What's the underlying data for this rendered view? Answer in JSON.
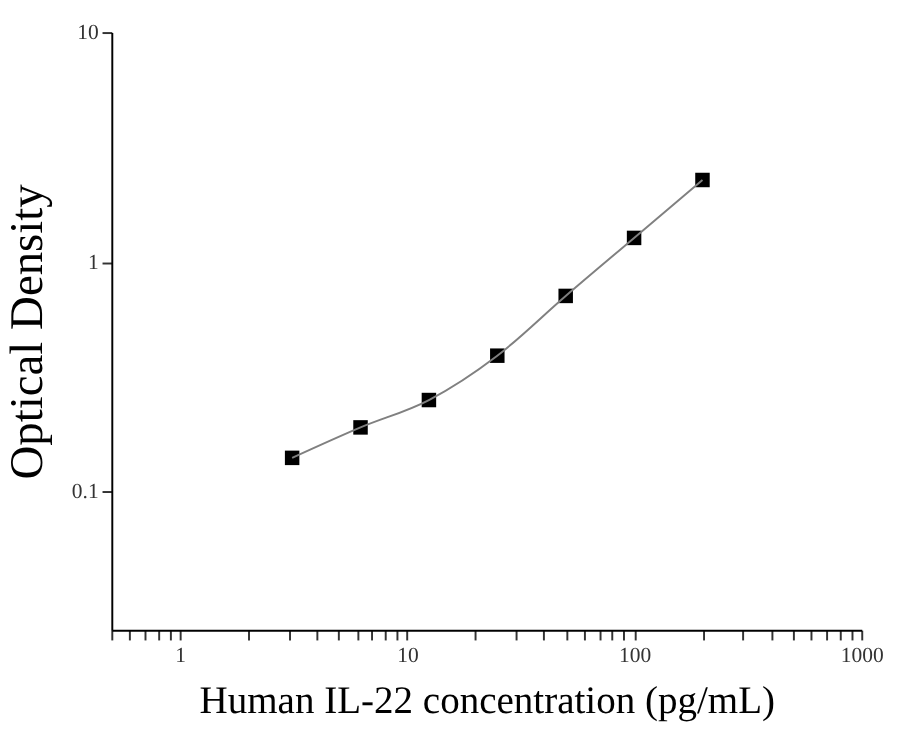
{
  "chart_data": {
    "type": "scatter",
    "xlabel": "Human IL-22 concentration (pg/mL)",
    "ylabel": "Optical Density",
    "log": "xy",
    "grid": false,
    "marker": "square",
    "x": [
      3.125,
      6.25,
      12.5,
      25,
      50,
      100,
      200
    ],
    "series": [
      {
        "color": "#000000",
        "values": [
          0.14,
          0.19,
          0.25,
          0.39,
          0.71,
          1.27,
          2.27
        ]
      },
      {
        "type": "line",
        "color": "#808080",
        "line_style": "solid",
        "marker": "none",
        "x": [
          3.125,
          6.25,
          12.5,
          25,
          50,
          100,
          200
        ],
        "values": [
          0.14,
          0.19,
          0.25,
          0.39,
          0.71,
          1.27,
          2.27
        ]
      }
    ],
    "xlim": [
      0.5,
      1000
    ],
    "ylim": [
      0.025,
      10
    ],
    "xticks": [
      {
        "value": 0.5,
        "label": null
      },
      {
        "value": 0.6,
        "label": null
      },
      {
        "value": 0.7,
        "label": null
      },
      {
        "value": 0.8,
        "label": null
      },
      {
        "value": 0.9,
        "label": null
      },
      1,
      {
        "value": 2,
        "label": null
      },
      {
        "value": 3,
        "label": null
      },
      {
        "value": 4,
        "label": null
      },
      {
        "value": 5,
        "label": null
      },
      {
        "value": 6,
        "label": null
      },
      {
        "value": 7,
        "label": null
      },
      {
        "value": 8,
        "label": null
      },
      {
        "value": 9,
        "label": null
      },
      10,
      {
        "value": 20,
        "label": null
      },
      {
        "value": 30,
        "label": null
      },
      {
        "value": 40,
        "label": null
      },
      {
        "value": 50,
        "label": null
      },
      {
        "value": 60,
        "label": null
      },
      {
        "value": 70,
        "label": null
      },
      {
        "value": 80,
        "label": null
      },
      {
        "value": 90,
        "label": null
      },
      100,
      {
        "value": 200,
        "label": null
      },
      {
        "value": 300,
        "label": null
      },
      {
        "value": 400,
        "label": null
      },
      {
        "value": 500,
        "label": null
      },
      {
        "value": 600,
        "label": null
      },
      {
        "value": 700,
        "label": null
      },
      {
        "value": 800,
        "label": null
      },
      {
        "value": 900,
        "label": null
      },
      1000
    ],
    "yticks": [
      0.1,
      1,
      10
    ]
  }
}
